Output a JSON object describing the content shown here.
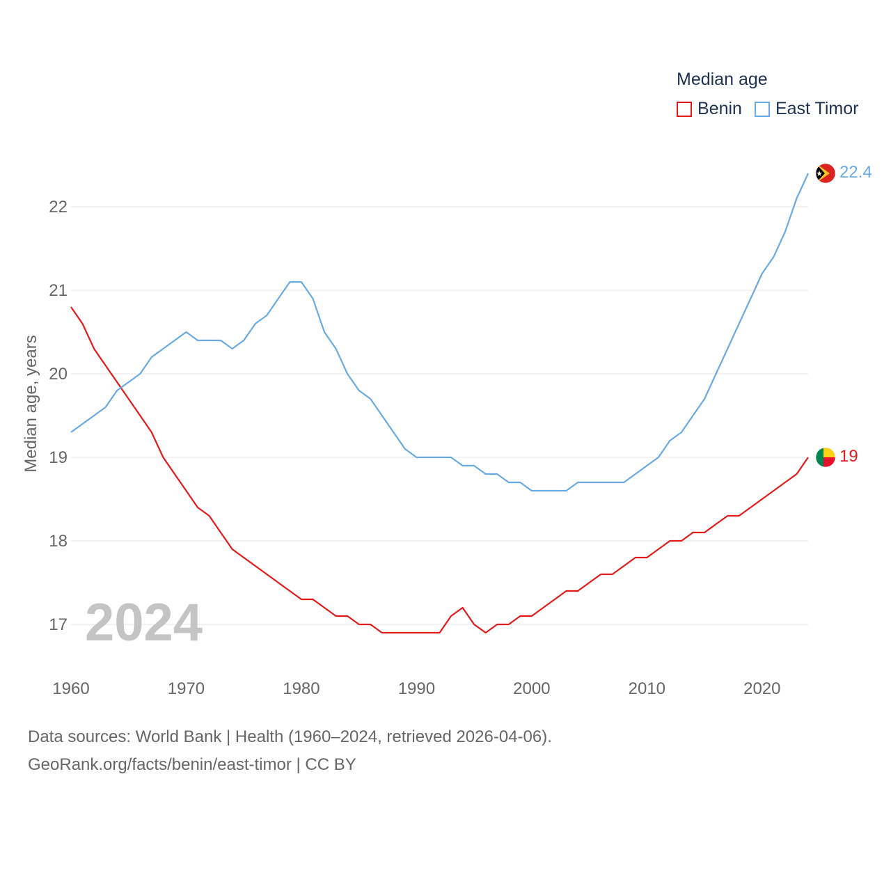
{
  "legend": {
    "title": "Median age",
    "items": [
      {
        "label": "Benin",
        "color": "#e31a1c"
      },
      {
        "label": "East Timor",
        "color": "#6aaae4"
      }
    ]
  },
  "footer": {
    "sources": "Data sources: World Bank | Health (1960–2024, retrieved 2026-04-06).",
    "credit": "GeoRank.org/facts/benin/east-timor | CC BY"
  },
  "chart_data": {
    "type": "line",
    "ylabel": "Median age, years",
    "xlabel": "",
    "year_label": "2024",
    "xlim": [
      1960,
      2024
    ],
    "ylim": [
      16.5,
      22.6
    ],
    "x_ticks": [
      1960,
      1970,
      1980,
      1990,
      2000,
      2010,
      2020
    ],
    "y_ticks": [
      17,
      18,
      19,
      20,
      21,
      22
    ],
    "grid": true,
    "legend_position": "top-right",
    "x": [
      1960,
      1961,
      1962,
      1963,
      1964,
      1965,
      1966,
      1967,
      1968,
      1969,
      1970,
      1971,
      1972,
      1973,
      1974,
      1975,
      1976,
      1977,
      1978,
      1979,
      1980,
      1981,
      1982,
      1983,
      1984,
      1985,
      1986,
      1987,
      1988,
      1989,
      1990,
      1991,
      1992,
      1993,
      1994,
      1995,
      1996,
      1997,
      1998,
      1999,
      2000,
      2001,
      2002,
      2003,
      2004,
      2005,
      2006,
      2007,
      2008,
      2009,
      2010,
      2011,
      2012,
      2013,
      2014,
      2015,
      2016,
      2017,
      2018,
      2019,
      2020,
      2021,
      2022,
      2023,
      2024
    ],
    "series": [
      {
        "name": "Benin",
        "color": "#e31a1c",
        "end_label": "19",
        "values": [
          20.8,
          20.6,
          20.3,
          20.1,
          19.9,
          19.7,
          19.5,
          19.3,
          19.0,
          18.8,
          18.6,
          18.4,
          18.3,
          18.1,
          17.9,
          17.8,
          17.7,
          17.6,
          17.5,
          17.4,
          17.3,
          17.3,
          17.2,
          17.1,
          17.1,
          17.0,
          17.0,
          16.9,
          16.9,
          16.9,
          16.9,
          16.9,
          16.9,
          17.1,
          17.2,
          17.0,
          16.9,
          17.0,
          17.0,
          17.1,
          17.1,
          17.2,
          17.3,
          17.4,
          17.4,
          17.5,
          17.6,
          17.6,
          17.7,
          17.8,
          17.8,
          17.9,
          18.0,
          18.0,
          18.1,
          18.1,
          18.2,
          18.3,
          18.3,
          18.4,
          18.5,
          18.6,
          18.7,
          18.8,
          19.0
        ]
      },
      {
        "name": "East Timor",
        "color": "#6aaae4",
        "end_label": "22.4",
        "values": [
          19.3,
          19.4,
          19.5,
          19.6,
          19.8,
          19.9,
          20.0,
          20.2,
          20.3,
          20.4,
          20.5,
          20.4,
          20.4,
          20.4,
          20.3,
          20.4,
          20.6,
          20.7,
          20.9,
          21.1,
          21.1,
          20.9,
          20.5,
          20.3,
          20.0,
          19.8,
          19.7,
          19.5,
          19.3,
          19.1,
          19.0,
          19.0,
          19.0,
          19.0,
          18.9,
          18.9,
          18.8,
          18.8,
          18.7,
          18.7,
          18.6,
          18.6,
          18.6,
          18.6,
          18.7,
          18.7,
          18.7,
          18.7,
          18.7,
          18.8,
          18.9,
          19.0,
          19.2,
          19.3,
          19.5,
          19.7,
          20.0,
          20.3,
          20.6,
          20.9,
          21.2,
          21.4,
          21.7,
          22.1,
          22.4
        ]
      }
    ]
  }
}
